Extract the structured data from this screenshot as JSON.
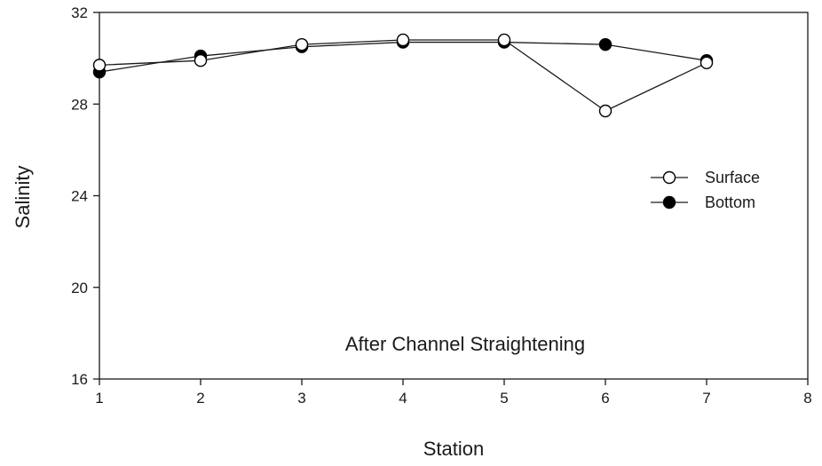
{
  "chart_data": {
    "type": "line",
    "title": "",
    "xlabel": "Station",
    "ylabel": "Salinity",
    "xlim": [
      1,
      8
    ],
    "ylim": [
      16,
      32
    ],
    "xticks": [
      1,
      2,
      3,
      4,
      5,
      6,
      7,
      8
    ],
    "yticks": [
      16,
      20,
      24,
      28,
      32
    ],
    "x": [
      1,
      2,
      3,
      4,
      5,
      6,
      7
    ],
    "series": [
      {
        "name": "Surface",
        "marker": "open-circle",
        "values": [
          29.7,
          29.9,
          30.6,
          30.8,
          30.8,
          27.7,
          29.8
        ]
      },
      {
        "name": "Bottom",
        "marker": "filled-circle",
        "values": [
          29.4,
          30.1,
          30.5,
          30.7,
          30.7,
          30.6,
          29.9
        ]
      }
    ],
    "annotation": "After Channel Straightening",
    "legend_position": "right",
    "grid": false,
    "colors": {
      "line": "#1a1a1a",
      "marker": "#000000",
      "background": "#ffffff"
    }
  }
}
